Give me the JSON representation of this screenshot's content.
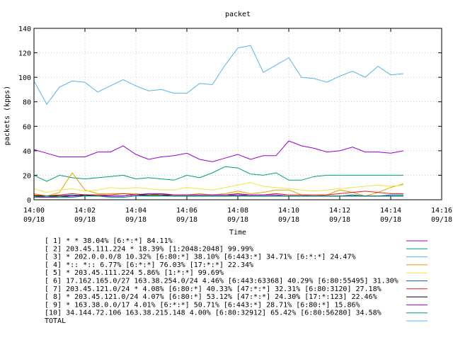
{
  "chart_data": {
    "type": "line",
    "title": "packet",
    "xlabel": "Time",
    "ylabel": "packets (kpps)",
    "ylim": [
      0,
      140
    ],
    "yticks": [
      0,
      20,
      40,
      60,
      80,
      100,
      120,
      140
    ],
    "x_ticks": [
      {
        "time": "14:00",
        "date": "09/18"
      },
      {
        "time": "14:02",
        "date": "09/18"
      },
      {
        "time": "14:04",
        "date": "09/18"
      },
      {
        "time": "14:06",
        "date": "09/18"
      },
      {
        "time": "14:08",
        "date": "09/18"
      },
      {
        "time": "14:10",
        "date": "09/18"
      },
      {
        "time": "14:12",
        "date": "09/18"
      },
      {
        "time": "14:14",
        "date": "09/18"
      },
      {
        "time": "14:16",
        "date": "09/18"
      }
    ],
    "xlim_minutes": [
      0,
      16
    ],
    "x_minutes": [
      0,
      0.5,
      1,
      1.5,
      2,
      2.5,
      3,
      3.5,
      4,
      4.5,
      5,
      5.5,
      6,
      6.5,
      7,
      7.5,
      8,
      8.5,
      9,
      9.5,
      10,
      10.5,
      11,
      11.5,
      12,
      12.5,
      13,
      13.5,
      14,
      14.5
    ],
    "legend_position": "bottom",
    "series": [
      {
        "name": "[ 1] * * 38.04%  [6:*:*] 84.11%",
        "color": "#9400d3",
        "values": [
          41,
          38,
          35,
          35,
          35,
          39,
          39,
          44,
          37,
          33,
          35,
          36,
          38,
          33,
          31,
          34,
          37,
          33,
          36,
          36,
          48,
          44,
          42,
          39,
          40,
          43,
          39,
          39,
          38,
          40
        ]
      },
      {
        "name": "[ 2] 203.45.111.224 * 18.39%  [1:2048:2048] 99.99%",
        "color": "#009e73",
        "values": [
          20,
          15,
          20,
          18,
          17,
          18,
          19,
          20,
          17,
          18,
          17,
          16,
          20,
          18,
          22,
          27,
          26,
          21,
          20,
          22,
          16,
          16,
          19,
          20,
          20,
          20,
          20,
          20,
          20,
          20
        ]
      },
      {
        "name": "[ 3] * 202.0.0.0/8 10.32%  [6:80:*] 38.10% [6:443:*] 34.71% [6:*:*] 24.47%",
        "color": "#56b4e9",
        "values": [
          97,
          78,
          92,
          97,
          96,
          88,
          93,
          98,
          93,
          89,
          90,
          87,
          87,
          95,
          94,
          110,
          124,
          126,
          104,
          110,
          116,
          100,
          99,
          96,
          101,
          105,
          100,
          109,
          102,
          103
        ]
      },
      {
        "name": "[ 4] *:: *:: 6.77%  [6:*:*] 76.03% [17:*:*] 22.34%",
        "color": "#e69f00",
        "values": [
          5,
          3,
          6,
          22,
          8,
          5,
          5,
          5,
          5,
          4,
          5,
          4,
          4,
          5,
          4,
          5,
          7,
          5,
          6,
          8,
          8,
          4,
          3,
          4,
          8,
          6,
          3,
          6,
          10,
          13
        ]
      },
      {
        "name": "[ 5] * 203.45.111.224 5.86%  [1:*:*] 99.69%",
        "color": "#f0e442",
        "values": [
          9,
          6,
          8,
          9,
          7,
          8,
          10,
          9,
          10,
          9,
          8,
          8,
          10,
          9,
          8,
          10,
          12,
          14,
          11,
          10,
          9,
          8,
          7,
          8,
          9,
          10,
          11,
          12,
          11,
          12
        ]
      },
      {
        "name": "[ 6] 17.162.165.0/27 163.38.254.0/24 4.46%  [6:443:63368] 40.29% [6:80:55495] 31.30%",
        "color": "#0072b2",
        "values": [
          3,
          2,
          3,
          4,
          3,
          4,
          3,
          3,
          4,
          3,
          3,
          3,
          3,
          3,
          3,
          3,
          4,
          3,
          3,
          3,
          3,
          3,
          3,
          3,
          3,
          4,
          3,
          3,
          4,
          4
        ]
      },
      {
        "name": "[ 7] 203.45.121.0/24 * 4.08%  [6:80:*] 40.33% [47:*:*] 32.31% [6:80:3120] 27.18%",
        "color": "#e51e10",
        "values": [
          4,
          3,
          4,
          5,
          4,
          4,
          4,
          5,
          4,
          4,
          4,
          4,
          4,
          4,
          4,
          4,
          5,
          4,
          4,
          5,
          4,
          4,
          4,
          4,
          5,
          6,
          7,
          6,
          5,
          5
        ]
      },
      {
        "name": "[ 8] * 203.45.121.0/24 4.07%  [6:80:*] 53.12% [47:*:*] 24.30% [17:*:123] 22.46%",
        "color": "#000000",
        "values": [
          3,
          3,
          3,
          3,
          4,
          3,
          3,
          3,
          4,
          4,
          4,
          3,
          3,
          3,
          3,
          3,
          3,
          3,
          3,
          3,
          3,
          3,
          3,
          3,
          3,
          3,
          3,
          3,
          3,
          3
        ]
      },
      {
        "name": "[ 9] * 163.38.0.0/17 4.01%  [6:*:*] 50.71% [6:443:*] 28.71% [6:80:*] 15.86%",
        "color": "#9400d3",
        "values": [
          2,
          2,
          2,
          3,
          3,
          3,
          3,
          3,
          4,
          5,
          5,
          4,
          4,
          4,
          4,
          4,
          4,
          4,
          4,
          4,
          3,
          3,
          3,
          3,
          3,
          3,
          3,
          3,
          3,
          3
        ]
      },
      {
        "name": "[10] 34.144.72.106 163.38.215.148 4.00%  [6:80:32912] 65.42% [6:80:56280] 34.58%",
        "color": "#009e73",
        "values": [
          2,
          3,
          2,
          2,
          3,
          3,
          2,
          2,
          3,
          3,
          3,
          3,
          3,
          3,
          3,
          3,
          3,
          3,
          3,
          3,
          3,
          3,
          3,
          3,
          3,
          3,
          3,
          3,
          3,
          3
        ]
      },
      {
        "name": "TOTAL",
        "color": "#56b4e9",
        "values": []
      }
    ]
  }
}
